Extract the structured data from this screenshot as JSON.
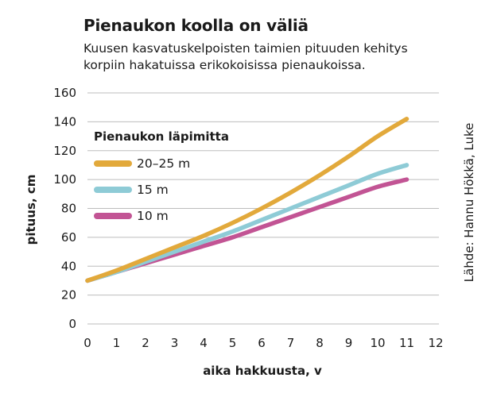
{
  "chart_data": {
    "type": "line",
    "title": "Pienaukon koolla on väliä",
    "subtitle": [
      "Kuusen kasvatuskelpoisten taimien pituuden kehitys",
      "korpiin hakatuissa erikokoisissa pienaukoissa."
    ],
    "xlabel": "aika hakkuusta, v",
    "ylabel": "pituus, cm",
    "xlim": [
      0,
      12
    ],
    "ylim": [
      0,
      160
    ],
    "xticks": [
      "0",
      "1",
      "2",
      "3",
      "4",
      "5",
      "6",
      "7",
      "8",
      "9",
      "10",
      "11",
      "12"
    ],
    "yticks": [
      "0",
      "20",
      "40",
      "60",
      "80",
      "100",
      "120",
      "140",
      "160"
    ],
    "grid": "horizontal",
    "legend_title": "Pienaukon läpimitta",
    "legend_position": "top-left",
    "source": "Lähde: Hannu Hökkä, Luke",
    "series": [
      {
        "name": "20–25 m",
        "color": "#e2a93b",
        "x": [
          0,
          1,
          2,
          3,
          4,
          5,
          6,
          7,
          8,
          9,
          10,
          11
        ],
        "y": [
          30,
          37,
          45,
          53,
          61,
          70,
          80,
          91,
          103,
          116,
          130,
          142
        ]
      },
      {
        "name": "15 m",
        "color": "#8ecbd6",
        "x": [
          0,
          1,
          2,
          3,
          4,
          5,
          6,
          7,
          8,
          9,
          10,
          11
        ],
        "y": [
          30,
          36,
          43,
          50,
          57,
          64,
          72,
          80,
          88,
          96,
          104,
          110
        ]
      },
      {
        "name": "10 m",
        "color": "#c25494",
        "x": [
          0,
          1,
          2,
          3,
          4,
          5,
          6,
          7,
          8,
          9,
          10,
          11
        ],
        "y": [
          30,
          36,
          42,
          48,
          54,
          60,
          67,
          74,
          81,
          88,
          95,
          100
        ]
      }
    ]
  }
}
